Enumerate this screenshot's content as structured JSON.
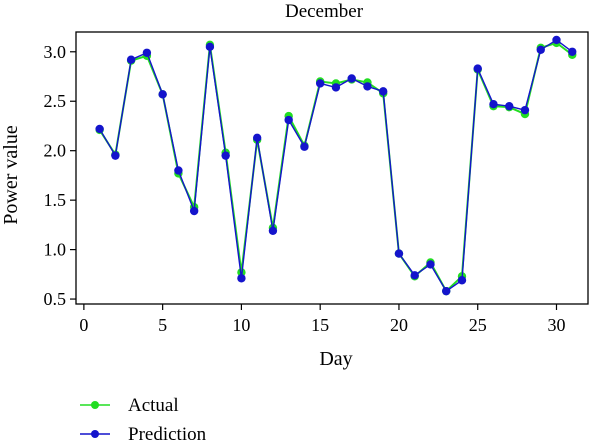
{
  "chart_data": {
    "type": "line",
    "title": "December",
    "xlabel": "Day",
    "ylabel": "Power value",
    "xlim": [
      -0.5,
      32
    ],
    "ylim": [
      0.45,
      3.2
    ],
    "xticks": [
      0,
      5,
      10,
      15,
      20,
      25,
      30
    ],
    "yticks": [
      0.5,
      1.0,
      1.5,
      2.0,
      2.5,
      3.0
    ],
    "yticklabels": [
      "0.5",
      "1.0",
      "1.5",
      "2.0",
      "2.5",
      "3.0"
    ],
    "grid": false,
    "legend_position": "bottom-left",
    "x": [
      1,
      2,
      3,
      4,
      5,
      6,
      7,
      8,
      9,
      10,
      11,
      12,
      13,
      14,
      15,
      16,
      17,
      18,
      19,
      20,
      21,
      22,
      23,
      24,
      25,
      26,
      27,
      28,
      29,
      30,
      31
    ],
    "series": [
      {
        "name": "Actual",
        "color": "#22dd22",
        "values": [
          2.21,
          1.96,
          2.91,
          2.96,
          2.57,
          1.77,
          1.43,
          3.07,
          1.98,
          0.77,
          2.11,
          1.22,
          2.35,
          2.05,
          2.7,
          2.68,
          2.72,
          2.69,
          2.58,
          0.96,
          0.73,
          0.87,
          0.58,
          0.73,
          2.82,
          2.45,
          2.44,
          2.37,
          3.04,
          3.09,
          2.97
        ]
      },
      {
        "name": "Prediction",
        "color": "#1414cc",
        "values": [
          2.22,
          1.95,
          2.92,
          2.99,
          2.57,
          1.8,
          1.39,
          3.05,
          1.95,
          0.71,
          2.13,
          1.19,
          2.31,
          2.04,
          2.68,
          2.64,
          2.73,
          2.65,
          2.6,
          0.96,
          0.74,
          0.85,
          0.58,
          0.69,
          2.83,
          2.47,
          2.45,
          2.41,
          3.02,
          3.12,
          3.0
        ]
      }
    ]
  }
}
